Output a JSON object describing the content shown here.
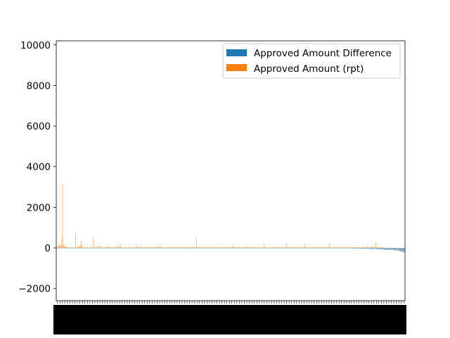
{
  "chart_data": {
    "type": "bar",
    "title": "",
    "xlabel": "",
    "ylabel": "",
    "ylim": [
      -2600,
      10200
    ],
    "yticks": [
      -2000,
      0,
      2000,
      4000,
      6000,
      8000,
      10000
    ],
    "yticks_label": [
      "−2000",
      "0",
      "2000",
      "4000",
      "6000",
      "8000",
      "10000"
    ],
    "grid": false,
    "legend_position": "top-right",
    "x_tick_labels": "dense, illegible (rendered as overlapping black text)",
    "series": [
      {
        "name": "Approved Amount Difference",
        "color": "#1f77b4",
        "values": [
          0,
          0,
          0,
          0,
          0,
          0,
          0,
          0,
          0,
          0,
          0,
          0,
          0,
          0,
          0,
          0,
          0,
          0,
          0,
          0,
          0,
          0,
          0,
          0,
          0,
          0,
          0,
          0,
          0,
          0,
          0,
          0,
          0,
          0,
          0,
          0,
          0,
          0,
          0,
          0,
          0,
          0,
          0,
          0,
          0,
          0,
          0,
          0,
          0,
          0,
          0,
          0,
          0,
          0,
          0,
          0,
          0,
          0,
          0,
          0,
          0,
          0,
          0,
          0,
          0,
          0,
          0,
          0,
          0,
          0,
          0,
          0,
          0,
          0,
          0,
          0,
          0,
          0,
          0,
          0,
          0,
          0,
          0,
          0,
          0,
          0,
          0,
          0,
          0,
          0,
          0,
          0,
          0,
          0,
          0,
          0,
          0,
          0,
          0,
          0,
          0,
          0,
          0,
          0,
          0,
          0,
          0,
          0,
          0,
          0,
          0,
          0,
          0,
          0,
          0,
          0,
          0,
          0,
          0,
          0,
          0,
          0,
          0,
          0,
          0,
          0,
          0,
          0,
          0,
          0,
          0,
          0,
          0,
          0,
          0,
          0,
          0,
          0,
          0,
          0,
          0,
          0,
          0,
          0,
          0,
          0,
          0,
          0,
          0,
          0,
          0,
          0,
          0,
          0,
          0,
          0,
          0,
          0,
          0,
          0,
          0,
          0,
          0,
          0,
          0,
          0,
          0,
          0,
          0,
          0,
          0,
          0,
          0,
          0,
          0,
          0,
          0,
          0,
          0,
          0,
          0,
          0,
          0,
          0,
          0,
          0,
          0,
          0,
          0,
          0,
          0,
          0,
          0,
          0,
          0,
          0,
          0,
          0,
          0,
          0,
          0,
          0,
          0,
          0,
          0,
          0,
          0,
          0,
          0,
          0,
          0,
          0,
          0,
          0,
          0,
          0,
          0,
          0,
          0,
          0,
          0,
          0,
          0,
          0,
          0,
          0,
          0,
          0,
          0,
          0,
          0,
          0,
          0,
          0,
          0,
          0,
          0,
          0,
          0,
          0,
          0,
          0,
          0,
          0,
          0,
          0,
          0,
          0,
          0,
          0,
          0,
          0,
          0,
          0,
          0,
          0,
          0,
          0,
          0,
          0,
          0,
          0,
          0,
          0,
          0,
          0,
          0,
          0,
          0,
          0,
          0,
          0,
          0,
          0,
          0,
          0,
          0,
          0,
          0,
          0,
          0,
          0,
          0,
          0,
          0,
          0,
          0,
          0,
          0,
          0,
          0,
          0,
          0,
          0,
          0,
          0,
          0,
          0,
          0,
          0,
          0,
          0,
          0,
          0,
          0,
          0,
          0,
          0,
          0,
          0,
          0,
          0,
          0,
          0,
          0,
          0,
          0,
          0,
          0,
          0,
          0,
          0,
          0,
          0,
          0,
          0,
          0,
          0,
          0,
          0,
          0,
          0,
          0,
          0,
          0,
          0,
          0,
          0,
          0,
          0,
          0,
          0,
          0,
          0,
          0,
          0,
          0,
          0,
          0,
          0,
          0,
          0,
          0,
          0,
          0,
          0,
          0,
          0,
          0,
          0,
          0,
          0,
          0,
          0,
          0,
          0,
          0,
          0,
          0,
          0,
          0,
          0,
          0,
          0,
          0,
          0,
          0,
          0,
          0,
          0,
          0,
          0,
          0,
          0,
          0,
          0,
          0,
          0,
          0,
          0,
          0,
          0,
          0,
          0,
          0,
          0,
          0,
          0,
          0,
          0,
          0,
          0,
          0,
          0,
          0,
          0,
          0,
          0,
          0,
          0,
          0,
          0,
          0,
          0,
          0,
          0,
          0,
          0,
          0,
          0,
          0,
          0,
          0,
          0,
          0,
          0,
          0,
          0,
          0,
          0,
          0,
          0,
          0,
          0,
          0,
          -20,
          -20,
          -20,
          -20,
          -20,
          -20,
          -20,
          -20,
          -20,
          -20,
          -20,
          -20,
          -20,
          -20,
          -20,
          -20,
          -20,
          -20,
          -20,
          -20,
          -20,
          -20,
          -20,
          -20,
          -30,
          -30,
          -30,
          -30,
          -30,
          -30,
          -30,
          -30,
          -30,
          -30,
          -30,
          -30,
          -30,
          -40,
          -40,
          -40,
          -40,
          -40,
          -40,
          -40,
          -40,
          -40,
          -40,
          -40,
          -40,
          -40,
          -40,
          -40,
          -50,
          -50,
          -50,
          -50,
          -50,
          -50,
          -50,
          -50,
          -50,
          -60,
          -60,
          -60,
          -60,
          -60,
          -70,
          -70,
          -70,
          -80,
          -80,
          -80,
          -80,
          -80,
          -80,
          -90,
          -90,
          -90,
          -90,
          -100,
          -100,
          -100,
          -100,
          -100,
          -100,
          -100,
          -100,
          -100,
          -100,
          -110,
          -110,
          -120,
          -120,
          -120,
          -130,
          -130,
          -140,
          -150,
          -150,
          -160,
          -160,
          -170,
          -180,
          -200,
          -200,
          -220,
          -240
        ]
      },
      {
        "name": "Approved Amount (rpt)",
        "color": "#ff7f0e",
        "values": [
          40,
          60,
          80,
          150,
          200,
          120,
          80,
          90,
          540,
          3150,
          100,
          160,
          120,
          50,
          80,
          60,
          40,
          30,
          20,
          40,
          30,
          20,
          20,
          30,
          20,
          40,
          30,
          20,
          30,
          700,
          40,
          20,
          40,
          100,
          30,
          90,
          60,
          160,
          340,
          100,
          40,
          20,
          30,
          20,
          40,
          30,
          20,
          30,
          40,
          20,
          20,
          30,
          20,
          40,
          30,
          20,
          30,
          500,
          30,
          20,
          60,
          40,
          30,
          90,
          40,
          30,
          130,
          40,
          20,
          60,
          30,
          40,
          20,
          30,
          40,
          20,
          30,
          20,
          40,
          80,
          30,
          20,
          60,
          90,
          40,
          20,
          30,
          40,
          20,
          30,
          40,
          20,
          30,
          60,
          100,
          40,
          20,
          130,
          40,
          170,
          20,
          30,
          40,
          20,
          30,
          40,
          20,
          30,
          40,
          20,
          30,
          20,
          40,
          30,
          40,
          20,
          30,
          20,
          40,
          40,
          20,
          30,
          20,
          170,
          40,
          20,
          30,
          40,
          20,
          30,
          60,
          40,
          20,
          30,
          40,
          20,
          40,
          30,
          20,
          40,
          30,
          60,
          40,
          20,
          30,
          40,
          20,
          40,
          30,
          20,
          30,
          40,
          80,
          40,
          20,
          40,
          80,
          40,
          30,
          60,
          40,
          160,
          20,
          40,
          30,
          40,
          20,
          40,
          30,
          20,
          40,
          30,
          20,
          40,
          30,
          40,
          20,
          40,
          30,
          20,
          40,
          30,
          20,
          40,
          30,
          20,
          40,
          30,
          20,
          40,
          20,
          20,
          40,
          30,
          20,
          40,
          30,
          20,
          40,
          30,
          20,
          30,
          40,
          20,
          30,
          60,
          40,
          20,
          40,
          30,
          40,
          60,
          50,
          20,
          30,
          20,
          40,
          530,
          40,
          20,
          30,
          40,
          20,
          40,
          30,
          20,
          40,
          30,
          20,
          40,
          20,
          40,
          30,
          20,
          40,
          30,
          20,
          40,
          20,
          40,
          30,
          20,
          40,
          20,
          40,
          30,
          20,
          40,
          30,
          20,
          40,
          30,
          20,
          40,
          30,
          20,
          40,
          30,
          20,
          40,
          30,
          20,
          40,
          30,
          20,
          40,
          80,
          20,
          40,
          30,
          20,
          40,
          30,
          120,
          40,
          20,
          40,
          30,
          20,
          40,
          30,
          20,
          40,
          30,
          20,
          40,
          30,
          20,
          40,
          30,
          20,
          40,
          30,
          20,
          40,
          90,
          20,
          40,
          30,
          20,
          40,
          60,
          20,
          40,
          30,
          20,
          40,
          30,
          20,
          40,
          30,
          20,
          40,
          30,
          20,
          40,
          30,
          20,
          40,
          30,
          20,
          40,
          220,
          40,
          20,
          40,
          30,
          20,
          40,
          30,
          20,
          40,
          30,
          20,
          40,
          30,
          20,
          40,
          30,
          20,
          40,
          30,
          20,
          40,
          30,
          20,
          40,
          30,
          20,
          40,
          30,
          20,
          40,
          30,
          20,
          40,
          30,
          250,
          40,
          30,
          20,
          40,
          30,
          20,
          40,
          30,
          20,
          40,
          30,
          20,
          40,
          30,
          20,
          40,
          30,
          20,
          40,
          30,
          20,
          40,
          30,
          20,
          40,
          30,
          20,
          200,
          40,
          30,
          20,
          40,
          30,
          20,
          40,
          30,
          20,
          40,
          30,
          20,
          40,
          30,
          20,
          40,
          30,
          20,
          40,
          30,
          20,
          40,
          30,
          20,
          40,
          30,
          20,
          40,
          30,
          20,
          40,
          30,
          20,
          40,
          30,
          20,
          40,
          30,
          220,
          40,
          30,
          20,
          40,
          30,
          20,
          40,
          30,
          20,
          40,
          30,
          20,
          40,
          30,
          20,
          40,
          30,
          20,
          40,
          30,
          20,
          40,
          30,
          20,
          40,
          30,
          20,
          40,
          30,
          20,
          40,
          30,
          20,
          40,
          30,
          20,
          40,
          30,
          20,
          40,
          30,
          20,
          40,
          30,
          20,
          40,
          30,
          20,
          40,
          30,
          60,
          40,
          30,
          20,
          40,
          30,
          20,
          40,
          90,
          20,
          40,
          30,
          20,
          40,
          30,
          20,
          40,
          120,
          20,
          40,
          30,
          290,
          40,
          30,
          20,
          40,
          30,
          20,
          40,
          30,
          20,
          40,
          30,
          20
        ]
      }
    ]
  }
}
